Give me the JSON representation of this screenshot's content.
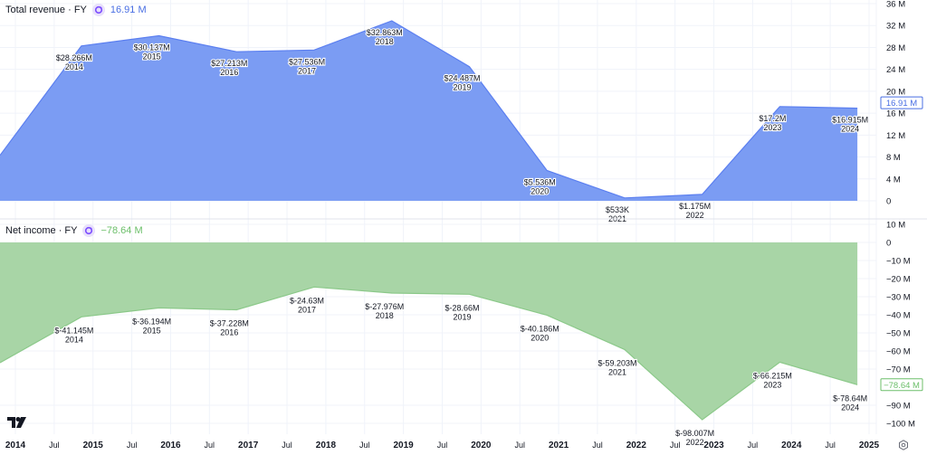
{
  "panels": {
    "revenue": {
      "legend_title": "Total revenue · FY",
      "legend_value": "16.91 M",
      "price_tag": "16.91 M",
      "color_fill": "#7b9cf3",
      "color_line": "#5b7ff0",
      "color_value": "#4a6fe3"
    },
    "net_income": {
      "legend_title": "Net income · FY",
      "legend_value": "−78.64 M",
      "price_tag": "−78.64 M",
      "color_fill": "#a8d5a6",
      "color_line": "#8cc98a",
      "color_value": "#6cbf6a"
    }
  },
  "icons": {
    "legend_icon": "refresh-icon",
    "logo": "tradingview-logo",
    "settings": "settings-icon"
  },
  "chart_data": [
    {
      "type": "area",
      "title": "Total revenue · FY",
      "x": [
        2014,
        2015,
        2016,
        2017,
        2018,
        2019,
        2020,
        2021,
        2022,
        2023,
        2024
      ],
      "values": [
        28.266,
        30.137,
        27.213,
        27.536,
        32.863,
        24.487,
        5.536,
        0.533,
        1.175,
        17.2,
        16.915
      ],
      "data_labels": [
        "$28.266M",
        "$30.137M",
        "$27.213M",
        "$27.536M",
        "$32.863M",
        "$24.487M",
        "$5.536M",
        "$533K",
        "$1.175M",
        "$17.2M",
        "$16.915M"
      ],
      "leading_value": 8.3,
      "units": "M",
      "ylim": [
        0,
        36
      ],
      "yticks": [
        0,
        4,
        8,
        12,
        16,
        20,
        24,
        28,
        32,
        36
      ],
      "ytick_labels": [
        "0",
        "4 M",
        "8 M",
        "12 M",
        "16 M",
        "20 M",
        "24 M",
        "28 M",
        "32 M",
        "36 M"
      ],
      "last_value_label": "16.91 M",
      "grid": true
    },
    {
      "type": "area",
      "title": "Net income · FY",
      "x": [
        2014,
        2015,
        2016,
        2017,
        2018,
        2019,
        2020,
        2021,
        2022,
        2023,
        2024
      ],
      "values": [
        -41.145,
        -36.194,
        -37.228,
        -24.63,
        -27.976,
        -28.66,
        -40.186,
        -59.203,
        -98.007,
        -66.215,
        -78.64
      ],
      "data_labels": [
        "$-41.145M",
        "$-36.194M",
        "$-37.228M",
        "$-24.63M",
        "$-27.976M",
        "$-28.66M",
        "$-40.186M",
        "$-59.203M",
        "$-98.007M",
        "$-66.215M",
        "$-78.64M"
      ],
      "leading_value": -66.5,
      "units": "M",
      "ylim": [
        -100,
        10
      ],
      "yticks": [
        10,
        0,
        -10,
        -20,
        -30,
        -40,
        -50,
        -60,
        -70,
        -90,
        -100
      ],
      "ytick_labels": [
        "10 M",
        "0",
        "−10 M",
        "−20 M",
        "−30 M",
        "−40 M",
        "−50 M",
        "−60 M",
        "−70 M",
        "−90 M",
        "−100 M"
      ],
      "last_value_label": "−78.64 M",
      "grid": true
    }
  ],
  "x_axis": {
    "ticks": [
      {
        "label": "2014",
        "t": 2014.0,
        "bold": true
      },
      {
        "label": "Jul",
        "t": 2014.5,
        "bold": false
      },
      {
        "label": "2015",
        "t": 2015.0,
        "bold": true
      },
      {
        "label": "Jul",
        "t": 2015.5,
        "bold": false
      },
      {
        "label": "2016",
        "t": 2016.0,
        "bold": true
      },
      {
        "label": "Jul",
        "t": 2016.5,
        "bold": false
      },
      {
        "label": "2017",
        "t": 2017.0,
        "bold": true
      },
      {
        "label": "Jul",
        "t": 2017.5,
        "bold": false
      },
      {
        "label": "2018",
        "t": 2018.0,
        "bold": true
      },
      {
        "label": "Jul",
        "t": 2018.5,
        "bold": false
      },
      {
        "label": "2019",
        "t": 2019.0,
        "bold": true
      },
      {
        "label": "Jul",
        "t": 2019.5,
        "bold": false
      },
      {
        "label": "2020",
        "t": 2020.0,
        "bold": true
      },
      {
        "label": "Jul",
        "t": 2020.5,
        "bold": false
      },
      {
        "label": "2021",
        "t": 2021.0,
        "bold": true
      },
      {
        "label": "Jul",
        "t": 2021.5,
        "bold": false
      },
      {
        "label": "2022",
        "t": 2022.0,
        "bold": true
      },
      {
        "label": "Jul",
        "t": 2022.5,
        "bold": false
      },
      {
        "label": "2023",
        "t": 2023.0,
        "bold": true
      },
      {
        "label": "Jul",
        "t": 2023.5,
        "bold": false
      },
      {
        "label": "2024",
        "t": 2024.0,
        "bold": true
      },
      {
        "label": "Jul",
        "t": 2024.5,
        "bold": false
      },
      {
        "label": "2025",
        "t": 2025.0,
        "bold": true
      }
    ],
    "range": [
      2013.8,
      2025.0
    ]
  }
}
